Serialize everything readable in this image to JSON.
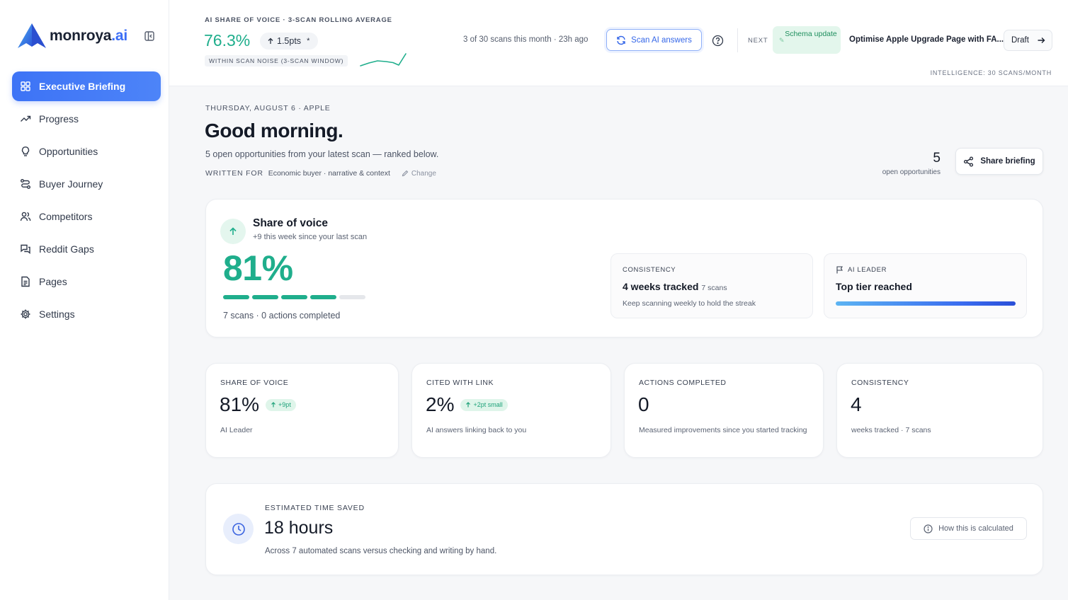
{
  "brand": {
    "name": "monroya",
    "tld": ".ai"
  },
  "sidebar": {
    "items": [
      {
        "label": "Executive Briefing",
        "icon": "grid-icon",
        "active": true
      },
      {
        "label": "Progress",
        "icon": "trend-icon"
      },
      {
        "label": "Opportunities",
        "icon": "lightbulb-icon"
      },
      {
        "label": "Buyer Journey",
        "icon": "route-icon"
      },
      {
        "label": "Competitors",
        "icon": "users-icon"
      },
      {
        "label": "Reddit Gaps",
        "icon": "chat-icon"
      },
      {
        "label": "Pages",
        "icon": "document-icon"
      },
      {
        "label": "Settings",
        "icon": "gear-icon"
      }
    ]
  },
  "topbar": {
    "sov_caption": "AI SHARE OF VOICE · 3-SCAN ROLLING AVERAGE",
    "sov_value": "76.3%",
    "sov_delta": "1.5pts",
    "sov_delta_marker": "*",
    "sov_noise": "WITHIN SCAN NOISE (3-SCAN WINDOW)",
    "scan_meta": "3 of 30 scans this month · 23h ago",
    "scan_button": "Scan AI answers",
    "next_label": "NEXT",
    "next_badge": "Schema update",
    "next_title": "Optimise Apple Upgrade Page with FA...",
    "draft_button": "Draft",
    "intel_label": "INTELLIGENCE: 30 SCANS/MONTH"
  },
  "header": {
    "date_line": "THURSDAY, AUGUST 6 · APPLE",
    "greeting": "Good morning.",
    "subline": "5 open opportunities from your latest scan — ranked below.",
    "written_for_label": "WRITTEN FOR",
    "written_for_value": "Economic buyer · narrative & context",
    "change_link": "Change",
    "open_count": "5",
    "open_label": "open opportunities",
    "share_button": "Share briefing"
  },
  "hero": {
    "title": "Share of voice",
    "subtitle": "+9 this week since your last scan",
    "value": "81%",
    "progress_segments_filled": 4,
    "progress_segments_total": 5,
    "footer": "7 scans · 0 actions completed",
    "consistency": {
      "label": "CONSISTENCY",
      "value": "4 weeks tracked",
      "value_small": "7 scans",
      "note": "Keep scanning weekly to hold the streak"
    },
    "leader": {
      "label": "AI LEADER",
      "value": "Top tier reached"
    }
  },
  "stats": [
    {
      "label": "SHARE OF VOICE",
      "value": "81%",
      "chip": "+9pt",
      "note": "AI Leader"
    },
    {
      "label": "CITED WITH LINK",
      "value": "2%",
      "chip": "+2pt small",
      "note": "AI answers linking back to you"
    },
    {
      "label": "ACTIONS COMPLETED",
      "value": "0",
      "note": "Measured improvements since you started tracking"
    },
    {
      "label": "CONSISTENCY",
      "value": "4",
      "note": "weeks tracked · 7 scans"
    }
  ],
  "saved": {
    "label": "ESTIMATED TIME SAVED",
    "value": "18 hours",
    "note": "Across 7 automated scans versus checking and writing by hand.",
    "calc_button": "How this is calculated"
  },
  "colors": {
    "accent_blue": "#3d73f6",
    "accent_green": "#1fae8c",
    "chip_green_bg": "#dff5ea",
    "schema_badge_bg": "#e3f6ec"
  }
}
